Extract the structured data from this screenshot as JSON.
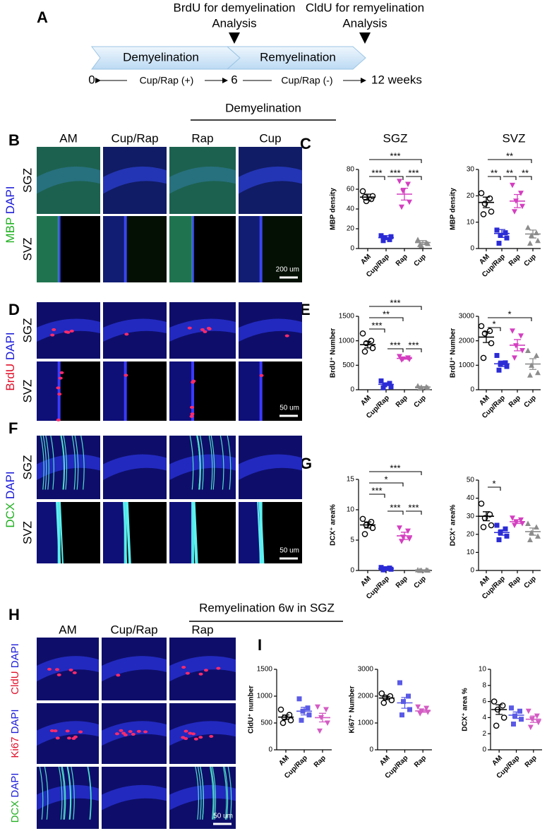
{
  "panel_labels": [
    "A",
    "B",
    "C",
    "D",
    "E",
    "F",
    "G",
    "H",
    "I"
  ],
  "timeline": {
    "callouts": [
      [
        "BrdU for demyelination",
        "Analysis"
      ],
      [
        "CldU for remyelination",
        "Analysis"
      ]
    ],
    "phases": [
      "Demyelination",
      "Remyelination"
    ],
    "axis": [
      "0",
      "Cup/Rap (+)",
      "6",
      "Cup/Rap (-)",
      "12 weeks"
    ]
  },
  "demyelination_header": "Demyelination",
  "columns": [
    "AM",
    "Cup/Rap",
    "Rap",
    "Cup"
  ],
  "regions": [
    "SGZ",
    "SVZ"
  ],
  "stains": [
    {
      "marker": "MBP",
      "counter": "DAPI"
    },
    {
      "marker": "BrdU",
      "counter": "DAPI"
    },
    {
      "marker": "DCX",
      "counter": "DAPI"
    }
  ],
  "scale_bars": [
    "200 um",
    "50 um",
    "50 um"
  ],
  "remyelination": {
    "header": "Remyelination 6w in SGZ",
    "columns": [
      "AM",
      "Cup/Rap",
      "Rap"
    ],
    "stains": [
      {
        "marker": "CldU",
        "counter": "DAPI"
      },
      {
        "marker": "Ki67",
        "counter": "DAPI"
      },
      {
        "marker": "DCX",
        "counter": "DAPI"
      }
    ],
    "scale_bar": "50 um"
  },
  "chart_data": [
    {
      "type": "dot",
      "title": "SGZ",
      "ylabel": "MBP density",
      "categories": [
        "AM",
        "Cup/Rap",
        "Rap",
        "Cup"
      ],
      "colors": [
        "#000000",
        "#2b2bd6",
        "#d43fc0",
        "#8c8c8c"
      ],
      "markers": [
        "circle-open",
        "square",
        "triangle-down",
        "triangle-up"
      ],
      "values": [
        [
          58,
          50,
          48,
          53,
          52
        ],
        [
          13,
          9,
          11,
          12,
          8
        ],
        [
          68,
          65,
          58,
          47,
          42
        ],
        [
          9,
          6,
          3,
          5,
          4
        ]
      ],
      "mean": [
        52,
        11,
        55,
        6
      ],
      "sem": [
        3,
        2,
        6,
        2
      ],
      "ylim": [
        0,
        80
      ],
      "yticks": [
        0,
        20,
        40,
        60,
        80
      ],
      "significance": [
        "***",
        "***",
        "***",
        "***"
      ]
    },
    {
      "type": "dot",
      "title": "SVZ",
      "ylabel": "MBP density",
      "categories": [
        "AM",
        "Cup/Rap",
        "Rap",
        "Cup"
      ],
      "colors": [
        "#000000",
        "#2b2bd6",
        "#d43fc0",
        "#8c8c8c"
      ],
      "markers": [
        "circle-open",
        "square",
        "triangle-down",
        "triangle-up"
      ],
      "values": [
        [
          21,
          19,
          17,
          14,
          13
        ],
        [
          7,
          6,
          5,
          4,
          2
        ],
        [
          24,
          21,
          18,
          16,
          14
        ],
        [
          8,
          6,
          5,
          3,
          2
        ]
      ],
      "mean": [
        17.5,
        5.7,
        18,
        5.5
      ],
      "sem": [
        2,
        1.5,
        2.5,
        1.5
      ],
      "ylim": [
        0,
        30
      ],
      "yticks": [
        0,
        10,
        20,
        30
      ],
      "significance": [
        "**",
        "**",
        "**",
        "**"
      ]
    },
    {
      "type": "dot",
      "ylabel": "BrdU⁺ Number",
      "categories": [
        "AM",
        "Cup/Rap",
        "Rap",
        "Cup"
      ],
      "colors": [
        "#000000",
        "#2b2bd6",
        "#d43fc0",
        "#8c8c8c"
      ],
      "markers": [
        "circle-open",
        "square",
        "triangle-down",
        "triangle-up"
      ],
      "values": [
        [
          1150,
          1000,
          950,
          850,
          780
        ],
        [
          180,
          130,
          100,
          60,
          40
        ],
        [
          680,
          650,
          630,
          620,
          610
        ],
        [
          80,
          60,
          50,
          40,
          30
        ]
      ],
      "mean": [
        920,
        110,
        640,
        55
      ],
      "sem": [
        65,
        25,
        15,
        10
      ],
      "ylim": [
        0,
        1500
      ],
      "yticks": [
        0,
        500,
        1000,
        1500
      ],
      "significance": [
        "***",
        "**",
        "***",
        "***",
        "***"
      ]
    },
    {
      "type": "dot",
      "ylabel": "BrdU⁺ Number",
      "categories": [
        "AM",
        "Cup/Rap",
        "Rap",
        "Cup"
      ],
      "colors": [
        "#000000",
        "#2b2bd6",
        "#d43fc0",
        "#8c8c8c"
      ],
      "markers": [
        "circle-open",
        "square",
        "triangle-down",
        "triangle-up"
      ],
      "values": [
        [
          2600,
          2400,
          2300,
          1900,
          1300
        ],
        [
          1400,
          1100,
          1050,
          950,
          800
        ],
        [
          2400,
          2200,
          1800,
          1600,
          1300
        ],
        [
          1600,
          1400,
          1000,
          700,
          600
        ]
      ],
      "mean": [
        2150,
        1060,
        1820,
        1050
      ],
      "sem": [
        220,
        110,
        230,
        220
      ],
      "ylim": [
        0,
        3000
      ],
      "yticks": [
        0,
        1000,
        2000,
        3000
      ],
      "significance": [
        "*",
        "*"
      ]
    },
    {
      "type": "dot",
      "ylabel": "DCX⁺ area%",
      "categories": [
        "AM",
        "Cup/Rap",
        "Rap",
        "Cup"
      ],
      "colors": [
        "#000000",
        "#2b2bd6",
        "#d43fc0",
        "#8c8c8c"
      ],
      "markers": [
        "circle-open",
        "square",
        "triangle-down",
        "triangle-up"
      ],
      "values": [
        [
          8.5,
          8,
          7.5,
          7,
          6
        ],
        [
          0.5,
          0.4,
          0.3,
          0.2,
          0.1
        ],
        [
          7,
          6.5,
          5.5,
          5.2,
          4.8
        ],
        [
          0.1,
          0.1,
          0.05,
          0.05,
          0.02
        ]
      ],
      "mean": [
        7.5,
        0.3,
        5.7,
        0.08
      ],
      "sem": [
        0.5,
        0.1,
        0.6,
        0.03
      ],
      "ylim": [
        0,
        15
      ],
      "yticks": [
        0,
        5,
        10,
        15
      ],
      "significance": [
        "***",
        "*",
        "***",
        "***",
        "***"
      ]
    },
    {
      "type": "dot",
      "ylabel": "DCX⁺ area%",
      "categories": [
        "AM",
        "Cup/Rap",
        "Rap",
        "Cup"
      ],
      "colors": [
        "#000000",
        "#2b2bd6",
        "#d43fc0",
        "#8c8c8c"
      ],
      "markers": [
        "circle-open",
        "square",
        "triangle-down",
        "triangle-up"
      ],
      "values": [
        [
          37,
          31,
          29,
          25,
          24
        ],
        [
          25,
          23,
          21,
          19,
          17
        ],
        [
          29,
          28,
          27,
          26,
          25
        ],
        [
          26,
          24,
          21,
          19,
          17
        ]
      ],
      "mean": [
        30,
        21,
        27,
        21.5
      ],
      "sem": [
        2.5,
        1.5,
        1,
        2
      ],
      "ylim": [
        0,
        50
      ],
      "yticks": [
        0,
        10,
        20,
        30,
        40,
        50
      ],
      "significance": [
        "*"
      ]
    },
    {
      "type": "dot",
      "ylabel": "CldU⁺ number",
      "categories": [
        "AM",
        "Cup/Rap",
        "Rap"
      ],
      "colors": [
        "#000000",
        "#5a5ae6",
        "#d45cc4"
      ],
      "markers": [
        "circle-open",
        "square",
        "triangle-down"
      ],
      "values": [
        [
          750,
          650,
          600,
          550,
          500
        ],
        [
          950,
          780,
          720,
          650,
          550
        ],
        [
          800,
          750,
          600,
          500,
          350
        ]
      ],
      "mean": [
        610,
        720,
        600
      ],
      "sem": [
        40,
        70,
        80
      ],
      "ylim": [
        0,
        1500
      ],
      "yticks": [
        0,
        500,
        1000,
        1500
      ],
      "significance": []
    },
    {
      "type": "dot",
      "ylabel": "Ki67⁺ Number",
      "categories": [
        "AM",
        "Cup/Rap",
        "Rap"
      ],
      "colors": [
        "#000000",
        "#5a5ae6",
        "#d45cc4"
      ],
      "markers": [
        "circle-open",
        "square",
        "triangle-down"
      ],
      "values": [
        [
          2100,
          2000,
          1950,
          1850,
          1750
        ],
        [
          2500,
          2000,
          1800,
          1500,
          1300
        ],
        [
          1600,
          1550,
          1450,
          1400,
          1350
        ]
      ],
      "mean": [
        1930,
        1750,
        1450
      ],
      "sem": [
        60,
        200,
        50
      ],
      "ylim": [
        0,
        3000
      ],
      "yticks": [
        0,
        1000,
        2000,
        3000
      ],
      "significance": []
    },
    {
      "type": "dot",
      "ylabel": "DCX⁺ area %",
      "categories": [
        "AM",
        "Cup/Rap",
        "Rap"
      ],
      "colors": [
        "#000000",
        "#5a5ae6",
        "#d45cc4"
      ],
      "markers": [
        "circle-open",
        "square",
        "triangle-down"
      ],
      "values": [
        [
          6,
          5.5,
          5,
          4,
          3
        ],
        [
          5.2,
          4.8,
          4.2,
          3.8,
          3.2
        ],
        [
          4.8,
          4.2,
          3.8,
          3.4,
          2.8
        ]
      ],
      "mean": [
        5,
        4.3,
        3.8
      ],
      "sem": [
        0.6,
        0.4,
        0.4
      ],
      "ylim": [
        0,
        10
      ],
      "yticks": [
        0,
        2,
        4,
        6,
        8,
        10
      ],
      "significance": []
    }
  ]
}
